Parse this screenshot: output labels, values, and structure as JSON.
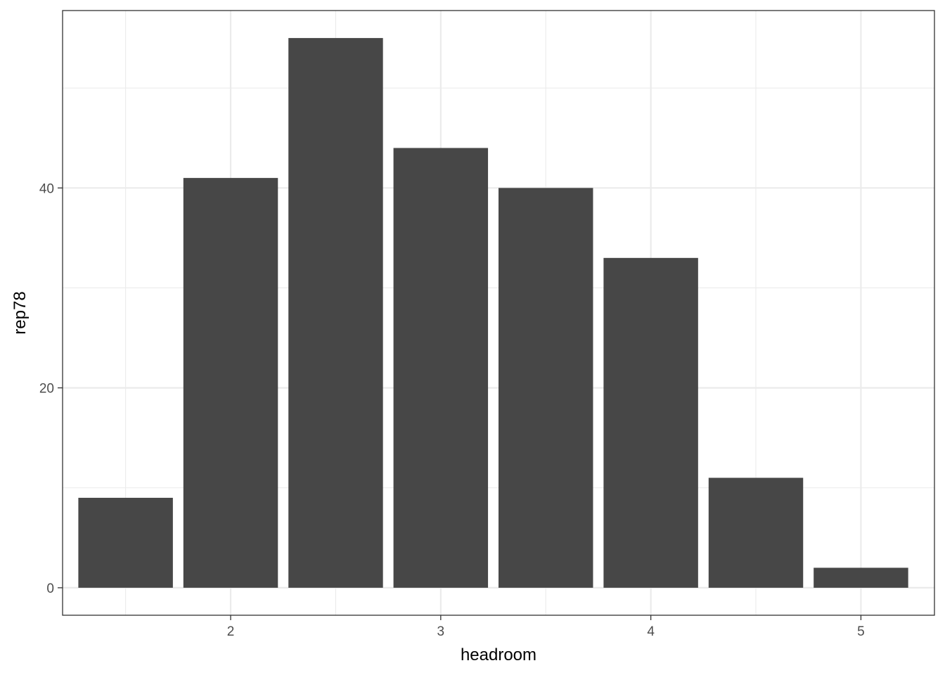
{
  "chart_data": {
    "type": "bar",
    "title": "",
    "xlabel": "headroom",
    "ylabel": "rep78",
    "x": [
      1.5,
      2.0,
      2.5,
      3.0,
      3.5,
      4.0,
      4.5,
      5.0
    ],
    "values": [
      9,
      41,
      55,
      44,
      40,
      33,
      11,
      2
    ],
    "xlim": [
      1.2,
      5.35
    ],
    "ylim": [
      -2.75,
      57.75
    ],
    "x_ticks": [
      2,
      3,
      4,
      5
    ],
    "y_ticks": [
      0,
      20,
      40
    ],
    "bar_color": "#474747",
    "grid": true,
    "theme": "bw"
  }
}
